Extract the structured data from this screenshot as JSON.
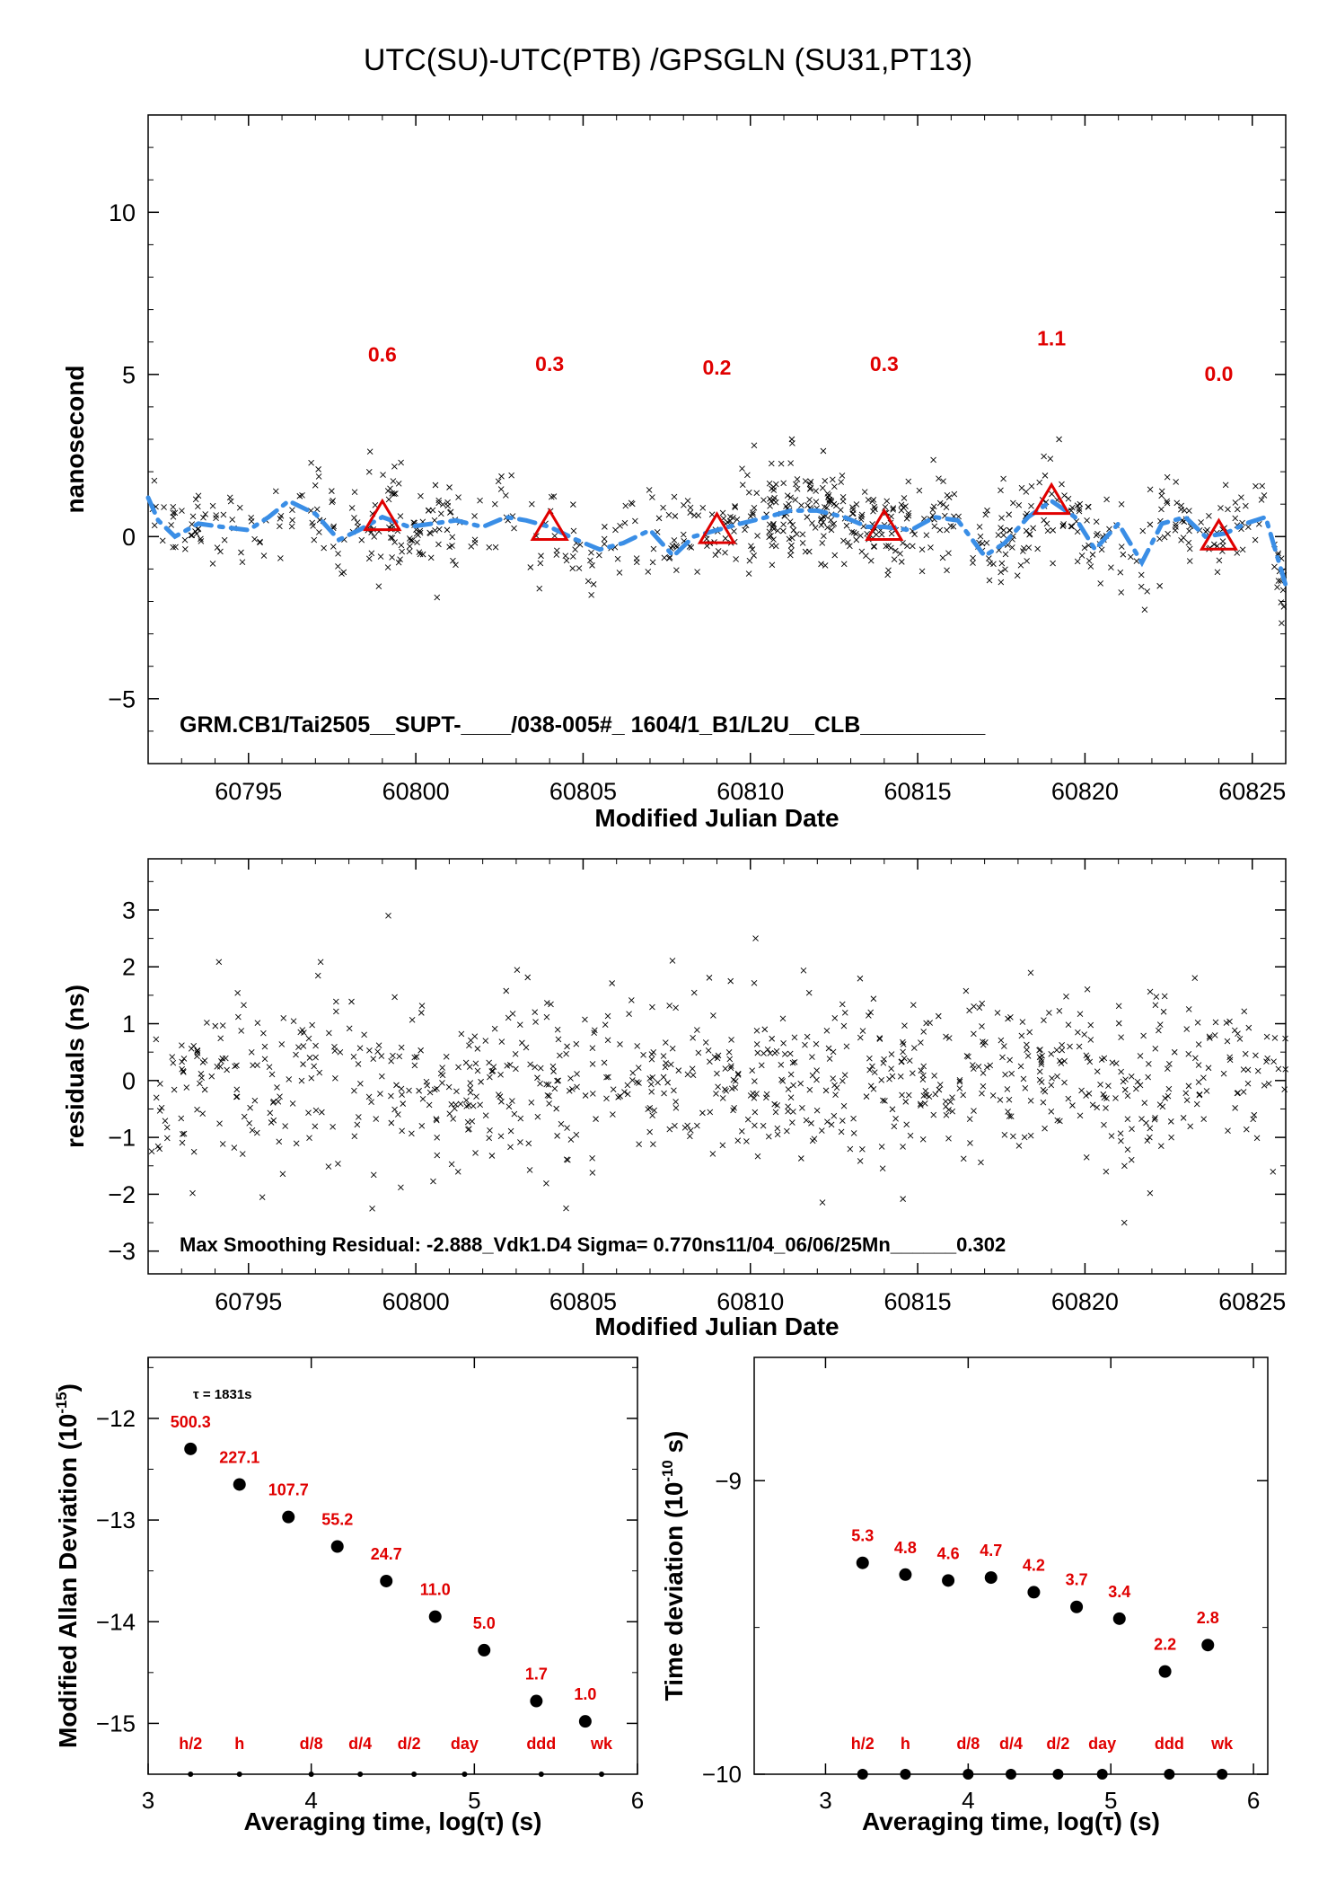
{
  "figure_title": "UTC(SU)-UTC(PTB)  /GPSGLN  (SU31,PT13)",
  "colors": {
    "marker": "#e00000",
    "smooth": "#3a8ee6",
    "points": "#000000"
  },
  "chart_data": [
    {
      "id": "top",
      "type": "scatter",
      "xlabel": "Modified Julian Date",
      "ylabel": "nanosecond",
      "xlim": [
        60792,
        60826
      ],
      "ylim": [
        -7,
        13
      ],
      "xticks": [
        60795,
        60800,
        60805,
        60810,
        60815,
        60820,
        60825
      ],
      "yticks": [
        -5,
        0,
        5,
        10
      ],
      "annotation": "GRM.CB1/Tai2505__SUPT-____/038-005#_  1604/1_B1/L2U__CLB__________",
      "markers": [
        {
          "x": 60799,
          "y": 0.6,
          "label": "0.6"
        },
        {
          "x": 60804,
          "y": 0.3,
          "label": "0.3"
        },
        {
          "x": 60809,
          "y": 0.2,
          "label": "0.2"
        },
        {
          "x": 60814,
          "y": 0.3,
          "label": "0.3"
        },
        {
          "x": 60819,
          "y": 1.1,
          "label": "1.1"
        },
        {
          "x": 60824,
          "y": 0.0,
          "label": "0.0"
        }
      ],
      "smooth": [
        [
          60792.0,
          1.2
        ],
        [
          60792.3,
          0.5
        ],
        [
          60792.8,
          0.0
        ],
        [
          60793.5,
          0.4
        ],
        [
          60794.2,
          0.3
        ],
        [
          60795.0,
          0.2
        ],
        [
          60795.6,
          0.6
        ],
        [
          60796.2,
          1.1
        ],
        [
          60797.0,
          0.7
        ],
        [
          60797.7,
          -0.1
        ],
        [
          60798.3,
          0.2
        ],
        [
          60799.0,
          0.6
        ],
        [
          60799.8,
          0.3
        ],
        [
          60800.5,
          0.4
        ],
        [
          60801.2,
          0.5
        ],
        [
          60802.0,
          0.3
        ],
        [
          60802.7,
          0.6
        ],
        [
          60803.3,
          0.5
        ],
        [
          60804.0,
          0.3
        ],
        [
          60804.8,
          -0.1
        ],
        [
          60805.5,
          -0.4
        ],
        [
          60806.2,
          -0.2
        ],
        [
          60807.0,
          0.2
        ],
        [
          60807.7,
          -0.6
        ],
        [
          60808.3,
          0.0
        ],
        [
          60809.0,
          0.2
        ],
        [
          60809.7,
          0.4
        ],
        [
          60810.5,
          0.6
        ],
        [
          60811.2,
          0.8
        ],
        [
          60812.0,
          0.8
        ],
        [
          60812.8,
          0.6
        ],
        [
          60813.5,
          0.3
        ],
        [
          60814.0,
          0.3
        ],
        [
          60814.8,
          0.2
        ],
        [
          60815.5,
          0.6
        ],
        [
          60816.2,
          0.5
        ],
        [
          60817.0,
          -0.6
        ],
        [
          60817.6,
          -0.2
        ],
        [
          60818.3,
          0.6
        ],
        [
          60819.0,
          1.1
        ],
        [
          60819.7,
          0.6
        ],
        [
          60820.3,
          -0.4
        ],
        [
          60821.0,
          0.4
        ],
        [
          60821.7,
          -0.8
        ],
        [
          60822.3,
          0.4
        ],
        [
          60823.0,
          0.6
        ],
        [
          60823.6,
          0.0
        ],
        [
          60824.2,
          0.1
        ],
        [
          60824.8,
          0.4
        ],
        [
          60825.4,
          0.6
        ],
        [
          60826.0,
          -1.5
        ]
      ],
      "noise": {
        "n": 900,
        "sigma": 0.77,
        "clusters": [
          60799,
          60810,
          60812,
          60814,
          60819,
          60824
        ]
      }
    },
    {
      "id": "residuals",
      "type": "scatter",
      "xlabel": "Modified Julian Date",
      "ylabel": "residuals (ns)",
      "xlim": [
        60792,
        60826
      ],
      "ylim": [
        -3.4,
        3.9
      ],
      "xticks": [
        60795,
        60800,
        60805,
        60810,
        60815,
        60820,
        60825
      ],
      "yticks": [
        -3,
        -2,
        -1,
        0,
        1,
        2,
        3
      ],
      "annotation": "Max Smoothing Residual: -2.888_Vdk1.D4  Sigma= 0.770ns11/04_06/06/25Mn______0.302",
      "noise": {
        "n": 1000,
        "sigma": 0.77
      }
    },
    {
      "id": "mdev",
      "type": "scatter",
      "xlabel": "Averaging time, log(τ) (s)",
      "ylabel": "Modified Allan Deviation (10",
      "ylabel_exp": "-15",
      "ylabel_tail": ")",
      "xlim": [
        3,
        6
      ],
      "ylim": [
        -15.5,
        -11.4
      ],
      "xticks": [
        3,
        4,
        5,
        6
      ],
      "yticks": [
        -15,
        -14,
        -13,
        -12
      ],
      "tau_note": "τ = 1831s",
      "points": [
        {
          "x": 3.26,
          "y": -12.3,
          "label": "500.3"
        },
        {
          "x": 3.56,
          "y": -12.65,
          "label": "227.1"
        },
        {
          "x": 3.86,
          "y": -12.97,
          "label": "107.7"
        },
        {
          "x": 4.16,
          "y": -13.26,
          "label": "55.2"
        },
        {
          "x": 4.46,
          "y": -13.6,
          "label": "24.7"
        },
        {
          "x": 4.76,
          "y": -13.95,
          "label": "11.0"
        },
        {
          "x": 5.06,
          "y": -14.28,
          "label": "5.0"
        },
        {
          "x": 5.38,
          "y": -14.78,
          "label": "1.7"
        },
        {
          "x": 5.68,
          "y": -14.98,
          "label": "1.0"
        }
      ],
      "baseline_y": -15.5,
      "baseline_points": [
        3.26,
        3.56,
        4.0,
        4.3,
        4.63,
        4.94,
        5.41,
        5.78
      ],
      "interval_labels": [
        {
          "x": 3.26,
          "label": "h/2"
        },
        {
          "x": 3.56,
          "label": "h"
        },
        {
          "x": 4.0,
          "label": "d/8"
        },
        {
          "x": 4.3,
          "label": "d/4"
        },
        {
          "x": 4.6,
          "label": "d/2"
        },
        {
          "x": 4.94,
          "label": "day"
        },
        {
          "x": 5.41,
          "label": "ddd"
        },
        {
          "x": 5.78,
          "label": "wk"
        }
      ]
    },
    {
      "id": "tdev",
      "type": "scatter",
      "xlabel": "Averaging time, log(τ) (s)",
      "ylabel": "Time deviation (10",
      "ylabel_exp": "-10",
      "ylabel_tail": " s)",
      "xlim": [
        2.5,
        6.1
      ],
      "ylim": [
        -10,
        -8.58
      ],
      "xticks": [
        3,
        4,
        5,
        6
      ],
      "yticks": [
        -10,
        -9
      ],
      "points": [
        {
          "x": 3.26,
          "y": -9.28,
          "label": "5.3"
        },
        {
          "x": 3.56,
          "y": -9.32,
          "label": "4.8"
        },
        {
          "x": 3.86,
          "y": -9.34,
          "label": "4.6"
        },
        {
          "x": 4.16,
          "y": -9.33,
          "label": "4.7"
        },
        {
          "x": 4.46,
          "y": -9.38,
          "label": "4.2"
        },
        {
          "x": 4.76,
          "y": -9.43,
          "label": "3.7"
        },
        {
          "x": 5.06,
          "y": -9.47,
          "label": "3.4"
        },
        {
          "x": 5.38,
          "y": -9.65,
          "label": "2.2"
        },
        {
          "x": 5.68,
          "y": -9.56,
          "label": "2.8"
        }
      ],
      "baseline_y": -10.0,
      "baseline_points": [
        3.26,
        3.56,
        4.0,
        4.3,
        4.63,
        4.94,
        5.41,
        5.78
      ],
      "interval_labels": [
        {
          "x": 3.26,
          "label": "h/2"
        },
        {
          "x": 3.56,
          "label": "h"
        },
        {
          "x": 4.0,
          "label": "d/8"
        },
        {
          "x": 4.3,
          "label": "d/4"
        },
        {
          "x": 4.63,
          "label": "d/2"
        },
        {
          "x": 4.94,
          "label": "day"
        },
        {
          "x": 5.41,
          "label": "ddd"
        },
        {
          "x": 5.78,
          "label": "wk"
        }
      ]
    }
  ]
}
